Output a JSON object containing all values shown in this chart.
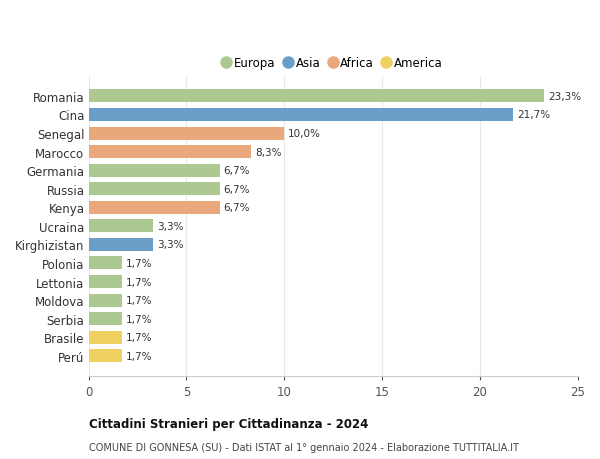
{
  "categories": [
    "Romania",
    "Cina",
    "Senegal",
    "Marocco",
    "Germania",
    "Russia",
    "Kenya",
    "Ucraina",
    "Kirghizistan",
    "Polonia",
    "Lettonia",
    "Moldova",
    "Serbia",
    "Brasile",
    "Perú"
  ],
  "values": [
    23.3,
    21.7,
    10.0,
    8.3,
    6.7,
    6.7,
    6.7,
    3.3,
    3.3,
    1.7,
    1.7,
    1.7,
    1.7,
    1.7,
    1.7
  ],
  "labels": [
    "23,3%",
    "21,7%",
    "10,0%",
    "8,3%",
    "6,7%",
    "6,7%",
    "6,7%",
    "3,3%",
    "3,3%",
    "1,7%",
    "1,7%",
    "1,7%",
    "1,7%",
    "1,7%",
    "1,7%"
  ],
  "continents": [
    "Europa",
    "Asia",
    "Africa",
    "Africa",
    "Europa",
    "Europa",
    "Africa",
    "Europa",
    "Asia",
    "Europa",
    "Europa",
    "Europa",
    "Europa",
    "America",
    "America"
  ],
  "continent_colors": {
    "Europa": "#adc991",
    "Asia": "#6b9dc9",
    "Africa": "#e8a87c",
    "America": "#f0d060"
  },
  "legend_order": [
    "Europa",
    "Asia",
    "Africa",
    "America"
  ],
  "title1": "Cittadini Stranieri per Cittadinanza - 2024",
  "title2": "COMUNE DI GONNESA (SU) - Dati ISTAT al 1° gennaio 2024 - Elaborazione TUTTITALIA.IT",
  "xlim": [
    0,
    25
  ],
  "xticks": [
    0,
    5,
    10,
    15,
    20,
    25
  ],
  "background_color": "#ffffff",
  "grid_color": "#e8e8e8",
  "bar_height": 0.7
}
